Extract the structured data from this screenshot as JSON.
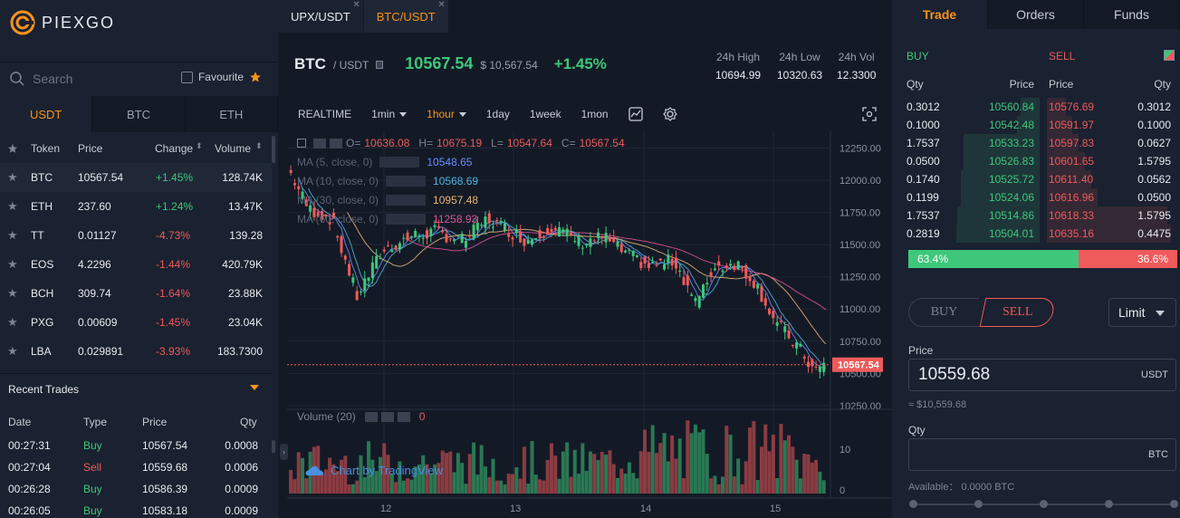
{
  "brand": {
    "name": "PIEXGO"
  },
  "search": {
    "placeholder": "Search",
    "favourite_label": "Favourite"
  },
  "market_tabs": [
    "USDT",
    "BTC",
    "ETH"
  ],
  "token_table": {
    "headers": {
      "token": "Token",
      "price": "Price",
      "change": "Change",
      "volume": "Volume"
    },
    "rows": [
      {
        "token": "BTC",
        "price": "10567.54",
        "change": "+1.45%",
        "volume": "128.74K",
        "dir": "up"
      },
      {
        "token": "ETH",
        "price": "237.60",
        "change": "+1.24%",
        "volume": "13.47K",
        "dir": "up"
      },
      {
        "token": "TT",
        "price": "0.01127",
        "change": "-4.73%",
        "volume": "139.28",
        "dir": "down"
      },
      {
        "token": "EOS",
        "price": "4.2296",
        "change": "-1.44%",
        "volume": "420.79K",
        "dir": "down"
      },
      {
        "token": "BCH",
        "price": "309.74",
        "change": "-1.64%",
        "volume": "23.88K",
        "dir": "down"
      },
      {
        "token": "PXG",
        "price": "0.00609",
        "change": "-1.45%",
        "volume": "23.04K",
        "dir": "down"
      },
      {
        "token": "LBA",
        "price": "0.029891",
        "change": "-3.93%",
        "volume": "183.7300",
        "dir": "down"
      }
    ]
  },
  "recent_trades": {
    "title": "Recent Trades",
    "headers": {
      "date": "Date",
      "type": "Type",
      "price": "Price",
      "qty": "Qty"
    },
    "rows": [
      {
        "date": "00:27:31",
        "type": "Buy",
        "price": "10567.54",
        "qty": "0.0008"
      },
      {
        "date": "00:27:04",
        "type": "Sell",
        "price": "10559.68",
        "qty": "0.0006"
      },
      {
        "date": "00:26:28",
        "type": "Buy",
        "price": "10586.39",
        "qty": "0.0009"
      },
      {
        "date": "00:26:05",
        "type": "Buy",
        "price": "10583.18",
        "qty": "0.0009"
      }
    ]
  },
  "pair_tabs": [
    "UPX/USDT",
    "BTC/USDT"
  ],
  "ticker": {
    "symbol": "BTC",
    "quote": "/ USDT",
    "price": "10567.54",
    "fiat": "$ 10,567.54",
    "change": "+1.45%",
    "stats": [
      {
        "label": "24h High",
        "value": "10694.99"
      },
      {
        "label": "24h Low",
        "value": "10320.63"
      },
      {
        "label": "24h Vol",
        "value": "12.3300"
      }
    ]
  },
  "chart_toolbar": {
    "realtime": "REALTIME",
    "interval_1": "1min",
    "interval_2": "1hour",
    "day": "1day",
    "week": "1week",
    "month": "1mon"
  },
  "chart_legend": {
    "ohlc": {
      "o_label": "O=",
      "o": "10636.08",
      "h_label": "H=",
      "h": "10675.19",
      "l_label": "L=",
      "l": "10547.64",
      "c_label": "C=",
      "c": "10567.54"
    },
    "ma": [
      {
        "label": "MA (5, close, 0)",
        "value": "10548.65",
        "color": "#6b8cff"
      },
      {
        "label": "MA (10, close, 0)",
        "value": "10568.69",
        "color": "#4fb4e0"
      },
      {
        "label": "MA (30, close, 0)",
        "value": "10957.48",
        "color": "#e8b67a"
      },
      {
        "label": "MA (60, close, 0)",
        "value": "11258.93",
        "color": "#e0559a"
      }
    ],
    "volume_label": "Volume (20)",
    "volume_value": "0",
    "watermark": "Chart by TradingView",
    "last_price_tag": "10567.54"
  },
  "chart_data": {
    "type": "candlestick",
    "y_ticks": [
      "12250.00",
      "12000.00",
      "11750.00",
      "11500.00",
      "11250.00",
      "11000.00",
      "10750.00",
      "10500.00",
      "10250.00"
    ],
    "y_range": [
      10200,
      12380
    ],
    "x_ticks": [
      "12",
      "13",
      "14",
      "15"
    ],
    "volume_ticks": [
      "10",
      "0"
    ],
    "last_price": 10567.54
  },
  "right_tabs": [
    "Trade",
    "Orders",
    "Funds"
  ],
  "orderbook": {
    "buy_label": "BUY",
    "sell_label": "SELL",
    "headers": {
      "qty": "Qty",
      "price": "Price",
      "price2": "Price",
      "qty2": "Qty"
    },
    "rows": [
      {
        "bq": "0.3012",
        "bp": "10560.84",
        "sp": "10576.69",
        "sq": "0.3012",
        "bw": 0.15,
        "sw": 0.15
      },
      {
        "bq": "0.1000",
        "bp": "10542.48",
        "sp": "10591.97",
        "sq": "0.1000",
        "bw": 0.18,
        "sw": 0.2
      },
      {
        "bq": "1.7537",
        "bp": "10533.23",
        "sp": "10597.83",
        "sq": "0.0627",
        "bw": 0.6,
        "sw": 0.25
      },
      {
        "bq": "0.0500",
        "bp": "10526.83",
        "sp": "10601.65",
        "sq": "1.5795",
        "bw": 0.6,
        "sw": 0.3
      },
      {
        "bq": "0.1740",
        "bp": "10525.72",
        "sp": "10611.40",
        "sq": "0.0562",
        "bw": 0.62,
        "sw": 0.35
      },
      {
        "bq": "0.1199",
        "bp": "10524.06",
        "sp": "10616.96",
        "sq": "0.0500",
        "bw": 0.62,
        "sw": 0.4
      },
      {
        "bq": "1.7537",
        "bp": "10514.86",
        "sp": "10618.33",
        "sq": "1.5795",
        "bw": 0.65,
        "sw": 0.95
      },
      {
        "bq": "0.2819",
        "bp": "10504.01",
        "sp": "10635.16",
        "sq": "0.4475",
        "bw": 0.66,
        "sw": 0.98
      }
    ],
    "ratio_buy": "63.4%",
    "ratio_sell": "36.6%",
    "ratio_buy_frac": 0.634
  },
  "order_form": {
    "buy": "BUY",
    "sell": "SELL",
    "type": "Limit",
    "price_label": "Price",
    "price_value": "10559.68",
    "price_unit": "USDT",
    "price_fiat": "≈ $10,559.68",
    "qty_label": "Qty",
    "qty_unit": "BTC",
    "available": "Available： 0.0000 BTC"
  }
}
